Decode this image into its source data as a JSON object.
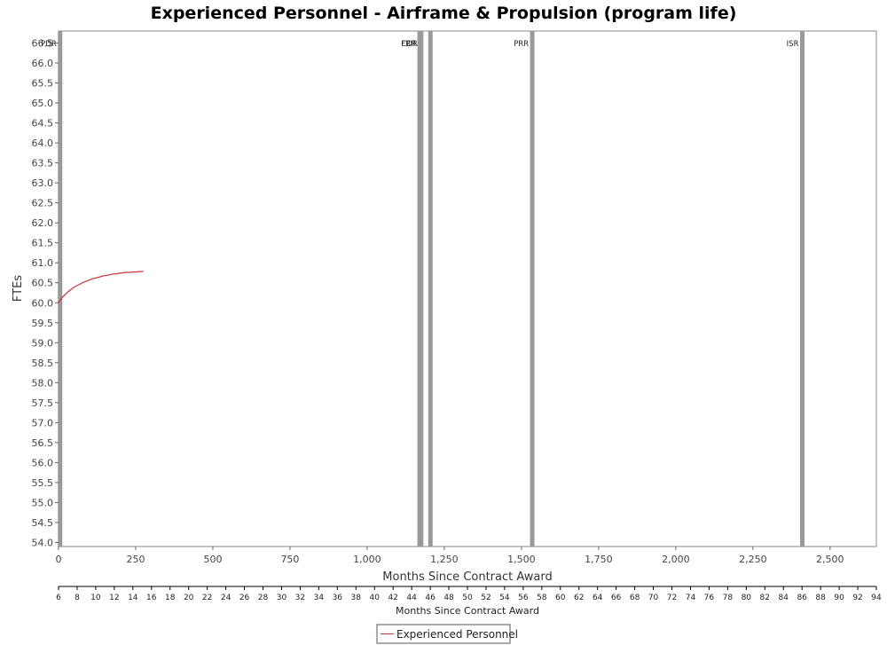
{
  "chart_data": {
    "type": "line",
    "title": "Experienced Personnel - Airframe & Propulsion (program life)",
    "xlabel": "Months Since Contract Award",
    "ylabel": "FTEs",
    "xlim": [
      0,
      2650
    ],
    "ylim": [
      53.9,
      66.8
    ],
    "x_ticks": [
      0,
      250,
      500,
      750,
      1000,
      1250,
      1500,
      1750,
      2000,
      2250,
      2500
    ],
    "x_tick_labels": [
      "0",
      "250",
      "500",
      "750",
      "1,000",
      "1,250",
      "1,500",
      "1,750",
      "2,000",
      "2,250",
      "2,500"
    ],
    "y_ticks": [
      54.0,
      54.5,
      55.0,
      55.5,
      56.0,
      56.5,
      57.0,
      57.5,
      58.0,
      58.5,
      59.0,
      59.5,
      60.0,
      60.5,
      61.0,
      61.5,
      62.0,
      62.5,
      63.0,
      63.5,
      64.0,
      64.5,
      65.0,
      65.5,
      66.0,
      66.5
    ],
    "y_tick_labels": [
      "54.0",
      "54.5",
      "55.0",
      "55.5",
      "56.0",
      "56.5",
      "57.0",
      "57.5",
      "58.0",
      "58.5",
      "59.0",
      "59.5",
      "60.0",
      "60.5",
      "61.0",
      "61.5",
      "62.0",
      "62.5",
      "63.0",
      "63.5",
      "64.0",
      "64.5",
      "65.0",
      "65.5",
      "66.0",
      "66.5"
    ],
    "grid": false,
    "series": [
      {
        "name": "Experienced Personnel",
        "color": "#cc3333",
        "x": [
          0,
          10,
          20,
          30,
          40,
          50,
          60,
          70,
          80,
          90,
          100,
          110,
          120,
          130,
          140,
          150,
          160,
          170,
          180,
          190,
          200,
          210,
          220,
          230,
          240,
          250,
          260,
          275
        ],
        "y": [
          60.0,
          60.12,
          60.2,
          60.27,
          60.33,
          60.39,
          60.43,
          60.47,
          60.51,
          60.54,
          60.57,
          60.6,
          60.62,
          60.64,
          60.66,
          60.68,
          60.69,
          60.71,
          60.72,
          60.73,
          60.74,
          60.75,
          60.76,
          60.76,
          60.77,
          60.77,
          60.78,
          60.78
        ]
      }
    ],
    "markers": [
      {
        "label": "PDR",
        "x": 5
      },
      {
        "label": "FRR",
        "x": 1170
      },
      {
        "label": "CDR",
        "x": 1175
      },
      {
        "label": "",
        "x": 1205
      },
      {
        "label": "PRR",
        "x": 1535
      },
      {
        "label": "ISR",
        "x": 2410
      }
    ],
    "marker_color": "#999999",
    "secondary_axis": {
      "label": "Months Since Contract Award",
      "ticks": [
        "6",
        "8",
        "10",
        "12",
        "14",
        "16",
        "18",
        "20",
        "22",
        "24",
        "26",
        "28",
        "30",
        "32",
        "34",
        "36",
        "38",
        "40",
        "42",
        "44",
        "46",
        "48",
        "50",
        "52",
        "54",
        "56",
        "58",
        "60",
        "62",
        "64",
        "66",
        "68",
        "70",
        "72",
        "74",
        "76",
        "78",
        "80",
        "82",
        "84",
        "86",
        "88",
        "90",
        "92",
        "94"
      ]
    },
    "legend": {
      "position": "bottom-center"
    }
  }
}
